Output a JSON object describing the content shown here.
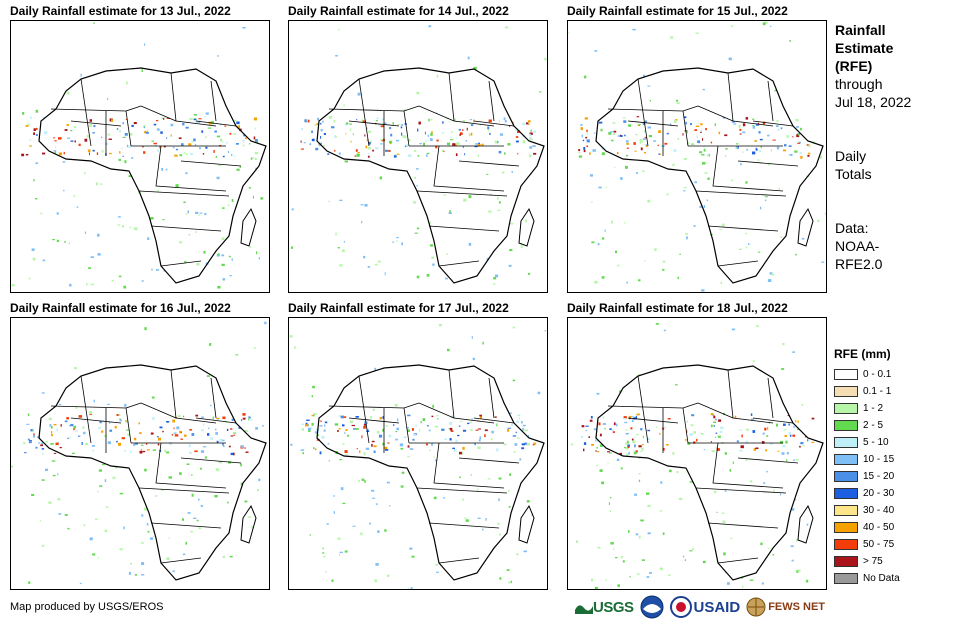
{
  "panels": [
    {
      "title": "Daily Rainfall estimate for 13 Jul., 2022"
    },
    {
      "title": "Daily Rainfall estimate for 14 Jul., 2022"
    },
    {
      "title": "Daily Rainfall estimate for 15 Jul., 2022"
    },
    {
      "title": "Daily Rainfall estimate for 16 Jul., 2022"
    },
    {
      "title": "Daily Rainfall estimate for 17 Jul., 2022"
    },
    {
      "title": "Daily Rainfall estimate for 18 Jul., 2022"
    }
  ],
  "sidebar": {
    "title_line1": "Rainfall",
    "title_line2": "Estimate",
    "title_line3": "(RFE)",
    "through_label": "through",
    "through_date": "Jul 18, 2022",
    "totals_line1": "Daily",
    "totals_line2": "Totals",
    "data_line1": "Data:",
    "data_line2": "NOAA-",
    "data_line3": "RFE2.0"
  },
  "legend": {
    "title": "RFE (mm)",
    "items": [
      {
        "label": "0 - 0.1",
        "color": "#ffffff"
      },
      {
        "label": "0.1 - 1",
        "color": "#f5deb3"
      },
      {
        "label": "1 - 2",
        "color": "#b7f5a8"
      },
      {
        "label": "2 - 5",
        "color": "#63d94f"
      },
      {
        "label": "5 - 10",
        "color": "#bfeff7"
      },
      {
        "label": "10 - 15",
        "color": "#7fbff5"
      },
      {
        "label": "15 - 20",
        "color": "#4a90e8"
      },
      {
        "label": "20 - 30",
        "color": "#1c5fe0"
      },
      {
        "label": "30 - 40",
        "color": "#fde58a"
      },
      {
        "label": "40 - 50",
        "color": "#f5a200"
      },
      {
        "label": "50 - 75",
        "color": "#f23c0a"
      },
      {
        "label": "> 75",
        "color": "#a8141a"
      },
      {
        "label": "No Data",
        "color": "#9a9a9a"
      }
    ]
  },
  "credit": "Map produced by USGS/EROS",
  "logos": {
    "usgs": "USGS",
    "noaa": "NOAA",
    "usaid": "USAID",
    "fewsnet": "FEWS NET"
  }
}
